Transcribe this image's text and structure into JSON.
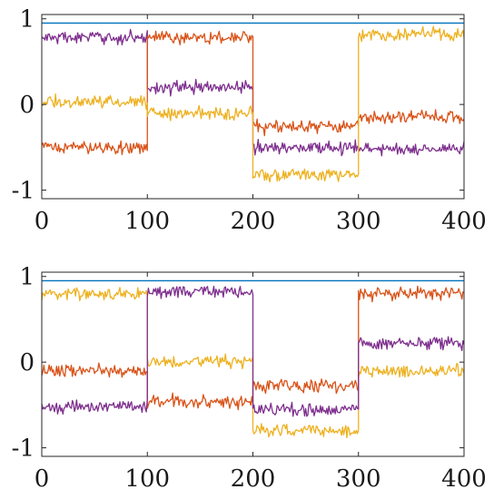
{
  "chart_data": [
    {
      "type": "line",
      "title": "",
      "xlabel": "",
      "ylabel": "",
      "xlim": [
        0,
        400
      ],
      "ylim": [
        -1.1,
        1.05
      ],
      "xticks": [
        0,
        100,
        200,
        300,
        400
      ],
      "xtick_labels": [
        "0",
        "100",
        "200",
        "300",
        "400"
      ],
      "yticks": [
        -1,
        0,
        1
      ],
      "ytick_labels": [
        "-1",
        "0",
        "1"
      ],
      "grid": false,
      "legend": "none",
      "series": [
        {
          "color": "#0072BD",
          "noise": 0,
          "segments": [
            {
              "x0": 0,
              "x1": 400,
              "y": 0.95
            }
          ]
        },
        {
          "color": "#7E2F8E",
          "noise": 0.05,
          "segments": [
            {
              "x0": 0,
              "x1": 100,
              "y": 0.78
            },
            {
              "x0": 100,
              "x1": 200,
              "y": 0.2
            },
            {
              "x0": 200,
              "x1": 300,
              "y": -0.5
            },
            {
              "x0": 300,
              "x1": 400,
              "y": -0.52
            }
          ]
        },
        {
          "color": "#D95319",
          "noise": 0.05,
          "segments": [
            {
              "x0": 0,
              "x1": 100,
              "y": -0.5
            },
            {
              "x0": 100,
              "x1": 200,
              "y": 0.78
            },
            {
              "x0": 200,
              "x1": 300,
              "y": -0.26
            },
            {
              "x0": 300,
              "x1": 400,
              "y": -0.15
            }
          ]
        },
        {
          "color": "#EDB120",
          "noise": 0.05,
          "segments": [
            {
              "x0": 0,
              "x1": 100,
              "y": 0.03
            },
            {
              "x0": 100,
              "x1": 200,
              "y": -0.1
            },
            {
              "x0": 200,
              "x1": 300,
              "y": -0.82
            },
            {
              "x0": 300,
              "x1": 400,
              "y": 0.82
            }
          ]
        }
      ]
    },
    {
      "type": "line",
      "title": "",
      "xlabel": "",
      "ylabel": "",
      "xlim": [
        0,
        400
      ],
      "ylim": [
        -1.1,
        1.05
      ],
      "xticks": [
        0,
        100,
        200,
        300,
        400
      ],
      "xtick_labels": [
        "0",
        "100",
        "200",
        "300",
        "400"
      ],
      "yticks": [
        -1,
        0,
        1
      ],
      "ytick_labels": [
        "-1",
        "0",
        "1"
      ],
      "grid": false,
      "legend": "none",
      "series": [
        {
          "color": "#0072BD",
          "noise": 0,
          "segments": [
            {
              "x0": 0,
              "x1": 400,
              "y": 0.95
            }
          ]
        },
        {
          "color": "#EDB120",
          "noise": 0.05,
          "segments": [
            {
              "x0": 0,
              "x1": 100,
              "y": 0.8
            },
            {
              "x0": 100,
              "x1": 200,
              "y": 0.01
            },
            {
              "x0": 200,
              "x1": 300,
              "y": -0.8
            },
            {
              "x0": 300,
              "x1": 400,
              "y": -0.1
            }
          ]
        },
        {
          "color": "#D95319",
          "noise": 0.05,
          "segments": [
            {
              "x0": 0,
              "x1": 100,
              "y": -0.1
            },
            {
              "x0": 100,
              "x1": 200,
              "y": -0.46
            },
            {
              "x0": 200,
              "x1": 300,
              "y": -0.27
            },
            {
              "x0": 300,
              "x1": 400,
              "y": 0.8
            }
          ]
        },
        {
          "color": "#7E2F8E",
          "noise": 0.05,
          "segments": [
            {
              "x0": 0,
              "x1": 100,
              "y": -0.52
            },
            {
              "x0": 100,
              "x1": 200,
              "y": 0.82
            },
            {
              "x0": 200,
              "x1": 300,
              "y": -0.55
            },
            {
              "x0": 300,
              "x1": 400,
              "y": 0.22
            }
          ]
        }
      ]
    }
  ]
}
